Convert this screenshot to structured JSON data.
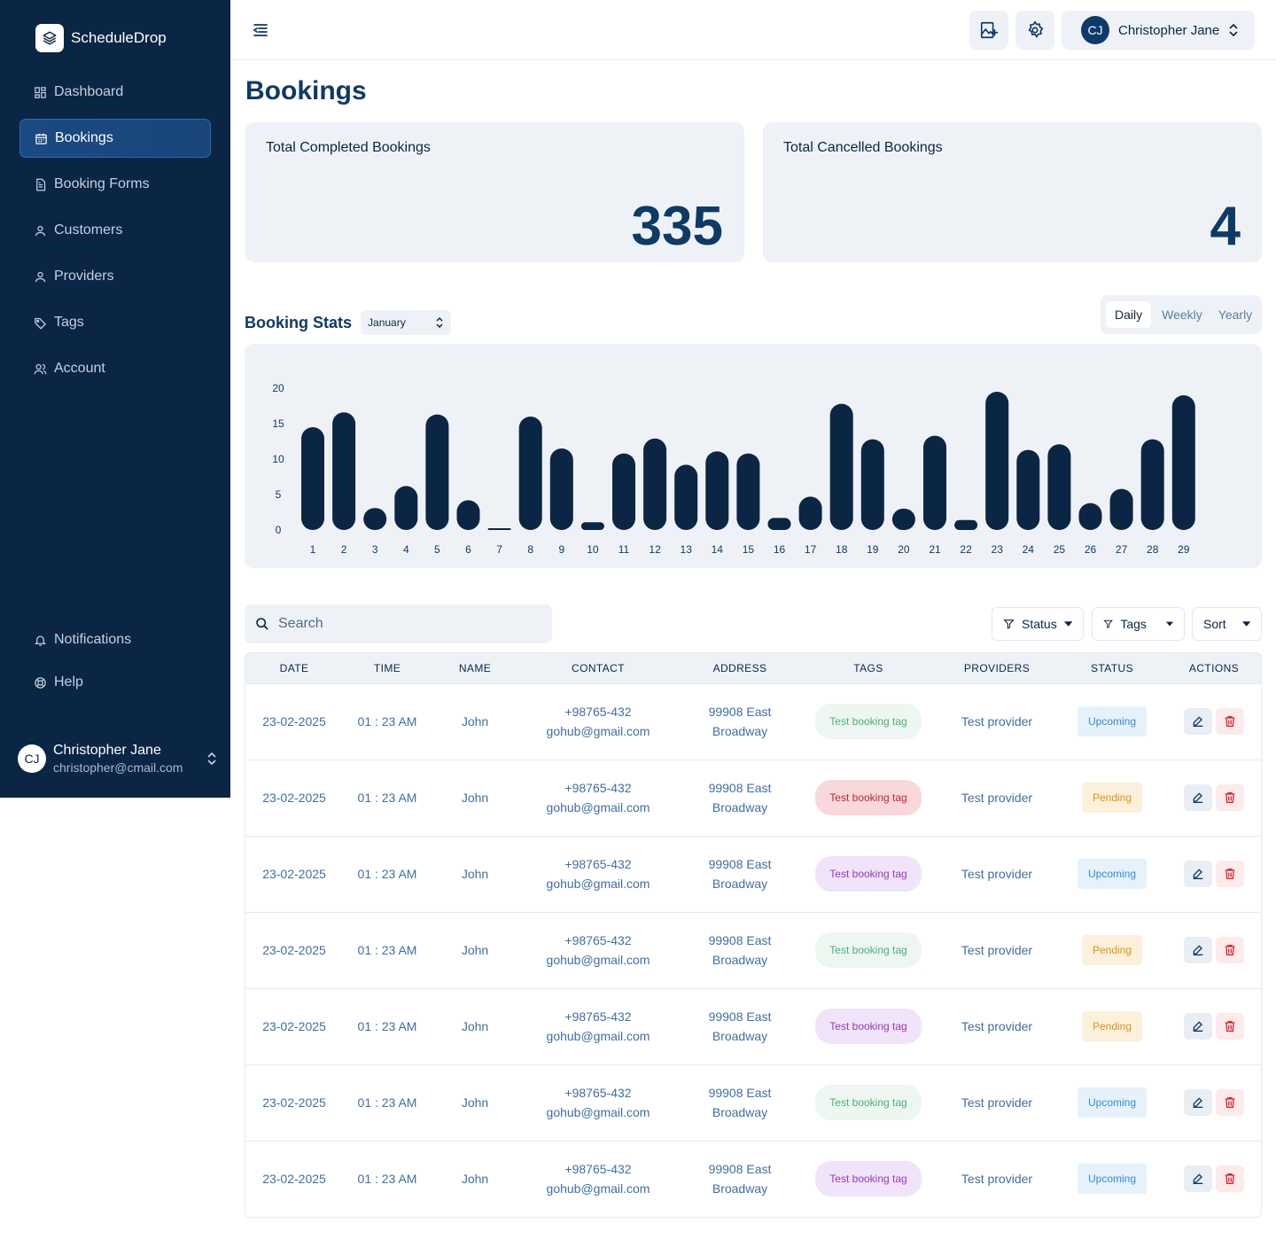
{
  "app": {
    "name": "ScheduleDrop"
  },
  "sidebar": {
    "items": [
      {
        "label": "Dashboard",
        "icon": "dashboard-icon",
        "active": false
      },
      {
        "label": "Bookings",
        "icon": "calendar-icon",
        "active": true
      },
      {
        "label": "Booking Forms",
        "icon": "document-icon",
        "active": false
      },
      {
        "label": "Customers",
        "icon": "user-icon",
        "active": false
      },
      {
        "label": "Providers",
        "icon": "user-icon",
        "active": false
      },
      {
        "label": "Tags",
        "icon": "tag-icon",
        "active": false
      },
      {
        "label": "Account",
        "icon": "users-icon",
        "active": false
      }
    ],
    "bottom_items": [
      {
        "label": "Notifications",
        "icon": "bell-icon"
      },
      {
        "label": "Help",
        "icon": "lifebuoy-icon"
      }
    ],
    "profile": {
      "initials": "CJ",
      "name": "Christopher Jane",
      "email": "christopher@cmail.com"
    }
  },
  "topbar": {
    "user": {
      "initials": "CJ",
      "name": "Christopher Jane"
    }
  },
  "page": {
    "title": "Bookings"
  },
  "stats": {
    "completed_label": "Total Completed Bookings",
    "completed_value": "335",
    "cancelled_label": "Total Cancelled Bookings",
    "cancelled_value": "4"
  },
  "booking_stats": {
    "title": "Booking Stats",
    "month": "January",
    "periods": [
      "Daily",
      "Weekly",
      "Yearly"
    ],
    "active_period": "Daily"
  },
  "chart_data": {
    "type": "bar",
    "categories": [
      "1",
      "2",
      "3",
      "4",
      "5",
      "6",
      "7",
      "8",
      "9",
      "10",
      "11",
      "12",
      "13",
      "14",
      "15",
      "16",
      "17",
      "18",
      "19",
      "20",
      "21",
      "22",
      "23",
      "24",
      "25",
      "26",
      "27",
      "28",
      "29"
    ],
    "values": [
      14.5,
      16.6,
      3.1,
      6.2,
      16.3,
      4.2,
      0.2,
      16,
      11.5,
      1.1,
      10.8,
      12.9,
      9.2,
      11.1,
      10.8,
      1.7,
      4.7,
      17.8,
      12.8,
      3,
      13.3,
      1.4,
      19.5,
      11.3,
      12.1,
      3.8,
      5.8,
      12.8,
      19
    ],
    "yticks": [
      0,
      5,
      10,
      15,
      20
    ],
    "ylim": [
      0,
      20
    ],
    "bar_color": "#0b2545"
  },
  "search": {
    "placeholder": "Search"
  },
  "filters": {
    "status": "Status",
    "tags": "Tags",
    "sort": "Sort"
  },
  "table": {
    "columns": [
      "DATE",
      "TIME",
      "NAME",
      "CONTACT",
      "ADDRESS",
      "TAGS",
      "PROVIDERS",
      "STATUS",
      "ACTIONS"
    ],
    "rows": [
      {
        "date": "23-02-2025",
        "time": "01 : 23 AM",
        "name": "John",
        "phone": "+98765-432",
        "email": "gohub@gmail.com",
        "address1": "99908 East",
        "address2": "Broadway",
        "tag": "Test booking tag",
        "tag_color": "green",
        "provider": "Test provider",
        "status": "Upcoming"
      },
      {
        "date": "23-02-2025",
        "time": "01 : 23 AM",
        "name": "John",
        "phone": "+98765-432",
        "email": "gohub@gmail.com",
        "address1": "99908 East",
        "address2": "Broadway",
        "tag": "Test booking tag",
        "tag_color": "red",
        "provider": "Test provider",
        "status": "Pending"
      },
      {
        "date": "23-02-2025",
        "time": "01 : 23 AM",
        "name": "John",
        "phone": "+98765-432",
        "email": "gohub@gmail.com",
        "address1": "99908 East",
        "address2": "Broadway",
        "tag": "Test booking tag",
        "tag_color": "purple",
        "provider": "Test provider",
        "status": "Upcoming"
      },
      {
        "date": "23-02-2025",
        "time": "01 : 23 AM",
        "name": "John",
        "phone": "+98765-432",
        "email": "gohub@gmail.com",
        "address1": "99908 East",
        "address2": "Broadway",
        "tag": "Test booking tag",
        "tag_color": "green",
        "provider": "Test provider",
        "status": "Pending"
      },
      {
        "date": "23-02-2025",
        "time": "01 : 23 AM",
        "name": "John",
        "phone": "+98765-432",
        "email": "gohub@gmail.com",
        "address1": "99908 East",
        "address2": "Broadway",
        "tag": "Test booking tag",
        "tag_color": "purple",
        "provider": "Test provider",
        "status": "Pending"
      },
      {
        "date": "23-02-2025",
        "time": "01 : 23 AM",
        "name": "John",
        "phone": "+98765-432",
        "email": "gohub@gmail.com",
        "address1": "99908 East",
        "address2": "Broadway",
        "tag": "Test booking tag",
        "tag_color": "green",
        "provider": "Test provider",
        "status": "Upcoming"
      },
      {
        "date": "23-02-2025",
        "time": "01 : 23 AM",
        "name": "John",
        "phone": "+98765-432",
        "email": "gohub@gmail.com",
        "address1": "99908 East",
        "address2": "Broadway",
        "tag": "Test booking tag",
        "tag_color": "purple",
        "provider": "Test provider",
        "status": "Upcoming"
      }
    ]
  }
}
